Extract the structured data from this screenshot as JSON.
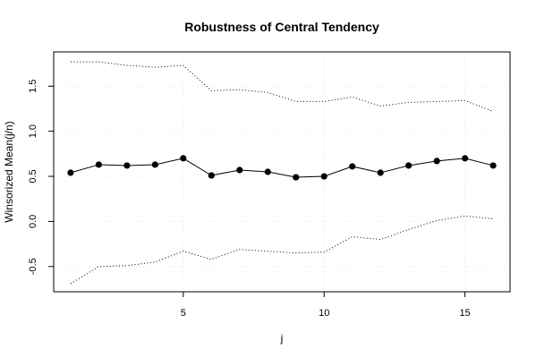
{
  "chart_data": {
    "type": "line",
    "title": "Robustness of Central Tendency",
    "xlabel": "j",
    "ylabel": "Winsorized Mean(j/n)",
    "xlim": [
      0.4,
      16.6
    ],
    "ylim": [
      -0.78,
      1.88
    ],
    "x_ticks": [
      5,
      10,
      15
    ],
    "y_ticks": [
      -0.5,
      0.0,
      0.5,
      1.0,
      1.5
    ],
    "x_tick_labels": [
      "5",
      "10",
      "15"
    ],
    "y_tick_labels": [
      "-0.5",
      "0.0",
      "0.5",
      "1.0",
      "1.5"
    ],
    "grid": true,
    "x": [
      1,
      2,
      3,
      4,
      5,
      6,
      7,
      8,
      9,
      10,
      11,
      12,
      13,
      14,
      15,
      16
    ],
    "series": [
      {
        "role": "mean",
        "style": "line-points",
        "values": [
          0.54,
          0.63,
          0.62,
          0.63,
          0.7,
          0.51,
          0.57,
          0.55,
          0.49,
          0.5,
          0.61,
          0.54,
          0.62,
          0.67,
          0.7,
          0.62
        ]
      },
      {
        "role": "upper",
        "style": "dotted",
        "values": [
          1.77,
          1.77,
          1.73,
          1.71,
          1.73,
          1.45,
          1.46,
          1.43,
          1.33,
          1.33,
          1.38,
          1.28,
          1.32,
          1.33,
          1.34,
          1.22
        ]
      },
      {
        "role": "lower",
        "style": "dotted",
        "values": [
          -0.69,
          -0.5,
          -0.49,
          -0.45,
          -0.33,
          -0.42,
          -0.31,
          -0.33,
          -0.35,
          -0.34,
          -0.17,
          -0.2,
          -0.09,
          0.01,
          0.06,
          0.03
        ]
      }
    ]
  }
}
